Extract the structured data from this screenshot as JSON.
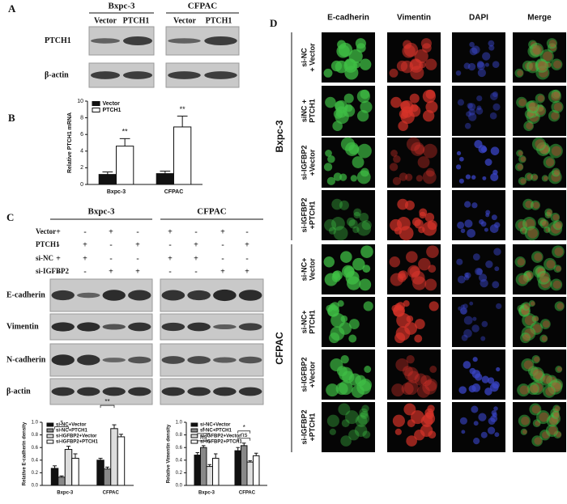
{
  "panels": {
    "A": {
      "label": "A",
      "cell_lines": [
        "Bxpc-3",
        "CFPAC"
      ],
      "lanes": [
        "Vector",
        "PTCH1",
        "Vector",
        "PTCH1"
      ],
      "rows": [
        "PTCH1",
        "β-actin"
      ]
    },
    "B": {
      "label": "B"
    },
    "C": {
      "label": "C",
      "cell_lines": [
        "Bxpc-3",
        "CFPAC"
      ],
      "conditions": [
        {
          "name": "Vector",
          "signs": [
            "+",
            "-",
            "+",
            "-"
          ]
        },
        {
          "name": "PTCH1",
          "signs": [
            "-",
            "+",
            "-",
            "+"
          ]
        },
        {
          "name": "si-NC",
          "signs": [
            "+",
            "+",
            "-",
            "-"
          ]
        },
        {
          "name": "si-IGFBP2",
          "signs": [
            "-",
            "-",
            "+",
            "+"
          ]
        }
      ],
      "blots": [
        "E-cadherin",
        "Vimentin",
        "N-cadherin",
        "β-actin"
      ]
    },
    "D": {
      "label": "D",
      "columns": [
        "E-cadherin",
        "Vimentin",
        "DAPI",
        "Merge"
      ],
      "groups": [
        {
          "name": "Bxpc-3",
          "rows": [
            [
              "si-NC",
              "+ Vector"
            ],
            [
              "siNC +",
              "PTCH1"
            ],
            [
              "si-IGFBP2",
              "+Vector"
            ],
            [
              "si-IGFBP2",
              "+PTCH1"
            ]
          ]
        },
        {
          "name": "CFPAC",
          "rows": [
            [
              "si-NC+",
              "Vector"
            ],
            [
              "si-NC+",
              "PTCH1"
            ],
            [
              "si-IGFBP2",
              "+Vector"
            ],
            [
              "si-IGFBP2",
              "+PTCH1"
            ]
          ]
        }
      ]
    }
  },
  "chart_data": [
    {
      "type": "bar",
      "ylabel": "Relative PTCH1 mRNA",
      "categories": [
        "Bxpc-3",
        "CFPAC"
      ],
      "series": [
        {
          "name": "Vector",
          "color": "#111111",
          "values": [
            1.2,
            1.3
          ],
          "errors": [
            0.3,
            0.3
          ]
        },
        {
          "name": "PTCH1",
          "color": "#ffffff",
          "values": [
            4.6,
            6.9
          ],
          "errors": [
            0.9,
            1.3
          ]
        }
      ],
      "ylim": [
        0,
        10
      ],
      "yticks": [
        0,
        2,
        4,
        6,
        8,
        10
      ],
      "annotations": [
        "**",
        "**"
      ]
    },
    {
      "type": "bar",
      "ylabel": "Relative E-cadherin density",
      "categories": [
        "Bxpc-3",
        "CFPAC"
      ],
      "series": [
        {
          "name": "si-NC+Vector",
          "color": "#111111",
          "values": [
            0.27,
            0.4
          ],
          "errors": [
            0.04,
            0.03
          ]
        },
        {
          "name": "si-NC+PTCH1",
          "color": "#888888",
          "values": [
            0.13,
            0.26
          ],
          "errors": [
            0.02,
            0.03
          ]
        },
        {
          "name": "si-IGFBP2+Vector",
          "color": "#dddddd",
          "values": [
            0.57,
            0.9
          ],
          "errors": [
            0.05,
            0.06
          ]
        },
        {
          "name": "si-IGFBP2+PTCH1",
          "color": "#ffffff",
          "values": [
            0.43,
            0.77
          ],
          "errors": [
            0.07,
            0.04
          ]
        }
      ],
      "ylim": [
        0,
        1.0
      ],
      "yticks": [
        {
          "value": 0,
          "label": "0.0"
        },
        {
          "value": 0.2,
          "label": "0.2"
        },
        {
          "value": 0.4,
          "label": "0.4"
        },
        {
          "value": 0.6,
          "label": "0.6"
        },
        {
          "value": 0.8,
          "label": "0.8"
        },
        {
          "value": 1.0,
          "label": "1.0"
        }
      ],
      "annotations": [
        "*",
        "**"
      ]
    },
    {
      "type": "bar",
      "ylabel": "Relative Vimentin density",
      "categories": [
        "Bxpc-3",
        "CFPAC"
      ],
      "series": [
        {
          "name": "si-NC+Vector",
          "color": "#111111",
          "values": [
            0.48,
            0.55
          ],
          "errors": [
            0.04,
            0.05
          ]
        },
        {
          "name": "si-NC+PTCH1",
          "color": "#888888",
          "values": [
            0.6,
            0.63
          ],
          "errors": [
            0.03,
            0.04
          ]
        },
        {
          "name": "si-IGFBP2+Vector",
          "color": "#dddddd",
          "values": [
            0.3,
            0.37
          ],
          "errors": [
            0.03,
            0.02
          ]
        },
        {
          "name": "si-IGFBP2+PTCH1",
          "color": "#ffffff",
          "values": [
            0.43,
            0.47
          ],
          "errors": [
            0.07,
            0.04
          ]
        }
      ],
      "ylim": [
        0,
        1.0
      ],
      "yticks": [
        {
          "value": 0,
          "label": "0.0"
        },
        {
          "value": 0.2,
          "label": "0.2"
        },
        {
          "value": 0.4,
          "label": "0.4"
        },
        {
          "value": 0.6,
          "label": "0.6"
        },
        {
          "value": 0.8,
          "label": "0.8"
        },
        {
          "value": 1.0,
          "label": "1.0"
        }
      ],
      "annotations": [
        "ns",
        "*",
        "ns",
        "*"
      ]
    }
  ]
}
